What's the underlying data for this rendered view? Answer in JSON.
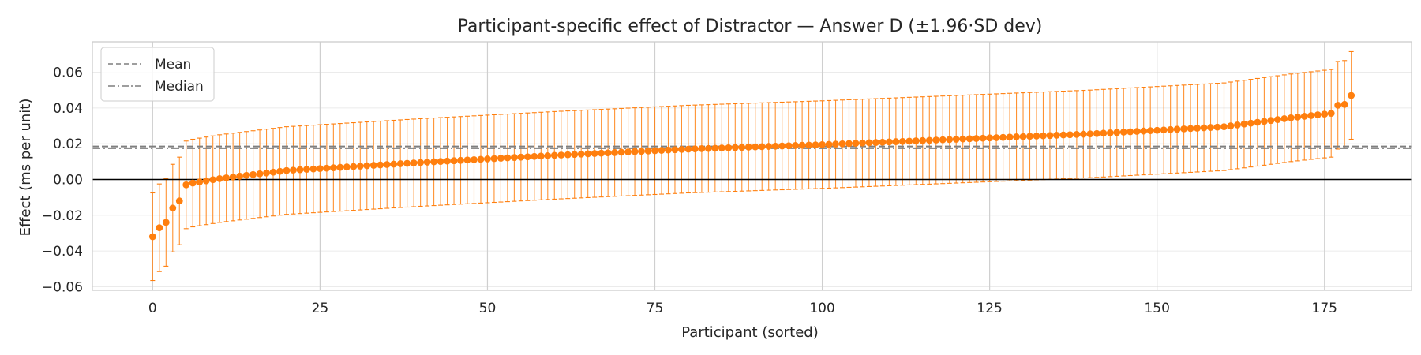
{
  "chart_data": {
    "type": "errorbar",
    "title": "Participant-specific effect of Distractor — Answer D (±1.96·SD dev)",
    "xlabel": "Participant (sorted)",
    "ylabel": "Effect (ms per unit)",
    "xlim": [
      -9,
      188
    ],
    "ylim": [
      -0.062,
      0.077
    ],
    "x_ticks": [
      0,
      25,
      50,
      75,
      100,
      125,
      150,
      175
    ],
    "y_ticks": [
      -0.06,
      -0.04,
      -0.02,
      0.0,
      0.02,
      0.04,
      0.06
    ],
    "y_tick_labels": [
      "−0.06",
      "−0.04",
      "−0.02",
      "0.00",
      "0.02",
      "0.04",
      "0.06"
    ],
    "n_participants": 180,
    "low_anchor_indices": [
      0,
      1,
      2,
      3,
      4,
      5,
      6,
      10,
      20,
      40,
      60,
      80,
      100,
      120,
      140,
      160,
      170,
      176,
      177,
      178,
      179
    ],
    "low_anchor_values": [
      -0.032,
      -0.027,
      -0.024,
      -0.016,
      -0.012,
      -0.003,
      -0.002,
      0.0005,
      0.005,
      0.0095,
      0.0135,
      0.017,
      0.0195,
      0.0225,
      0.0255,
      0.0295,
      0.0345,
      0.037,
      0.0415,
      0.042,
      0.047
    ],
    "series_color": "#ff7f0e",
    "error_half_width": 0.0245,
    "mean": 0.0185,
    "median": 0.0175,
    "zero_line": 0.0,
    "legend": {
      "position": "top-left",
      "entries": [
        {
          "label": "Mean",
          "style": "dashed"
        },
        {
          "label": "Median",
          "style": "dashdot"
        }
      ]
    },
    "grid": true
  }
}
